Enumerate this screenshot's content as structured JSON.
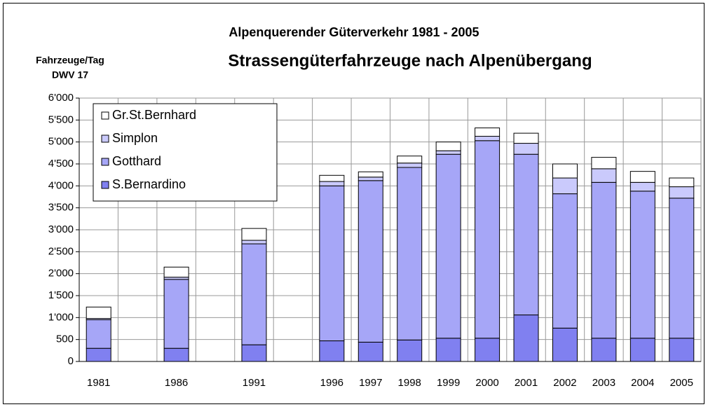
{
  "chart_data": {
    "type": "stacked_bar",
    "title": "Alpenquerender Güterverkehr 1981 - 2005",
    "subtitle": "Strassengüterfahrzeuge nach Alpenübergang",
    "y_label": [
      "Fahrzeuge/Tag",
      "DWV 17"
    ],
    "categories": [
      "1981",
      null,
      "1986",
      null,
      "1991",
      null,
      "1996",
      "1997",
      "1998",
      "1999",
      "2000",
      "2001",
      "2002",
      "2003",
      "2004",
      "2005"
    ],
    "series": [
      {
        "name": "S.Bernardino",
        "color": "#8080f0",
        "values": [
          300,
          null,
          300,
          null,
          380,
          null,
          470,
          440,
          490,
          530,
          530,
          1060,
          760,
          530,
          530,
          530
        ]
      },
      {
        "name": "Gotthard",
        "color": "#a6a6f7",
        "values": [
          650,
          null,
          1570,
          null,
          2300,
          null,
          3530,
          3680,
          3930,
          4190,
          4500,
          3660,
          3060,
          3550,
          3350,
          3190
        ]
      },
      {
        "name": "Simplon",
        "color": "#cacafc",
        "values": [
          30,
          null,
          50,
          null,
          80,
          null,
          100,
          80,
          100,
          80,
          100,
          250,
          360,
          310,
          200,
          260
        ]
      },
      {
        "name": "Gr.St.Bernhard",
        "color": "#ffffff",
        "values": [
          260,
          null,
          230,
          null,
          270,
          null,
          140,
          120,
          160,
          200,
          190,
          230,
          320,
          260,
          250,
          200
        ]
      }
    ],
    "ylim": [
      0,
      6000
    ],
    "yticks": [
      0,
      500,
      {
        "value": 1000,
        "label": "1'000"
      },
      {
        "value": 1500,
        "label": "1'500"
      },
      {
        "value": 2000,
        "label": "2'000"
      },
      {
        "value": 2500,
        "label": "2'500"
      },
      {
        "value": 3000,
        "label": "3'000"
      },
      {
        "value": 3500,
        "label": "3'500"
      },
      {
        "value": 4000,
        "label": "4'000"
      },
      {
        "value": 4500,
        "label": "4'500"
      },
      {
        "value": 5000,
        "label": "5'000"
      },
      {
        "value": 5500,
        "label": "5'500"
      },
      {
        "value": 6000,
        "label": "6'000"
      }
    ],
    "grid": true,
    "legend": "upper left"
  }
}
